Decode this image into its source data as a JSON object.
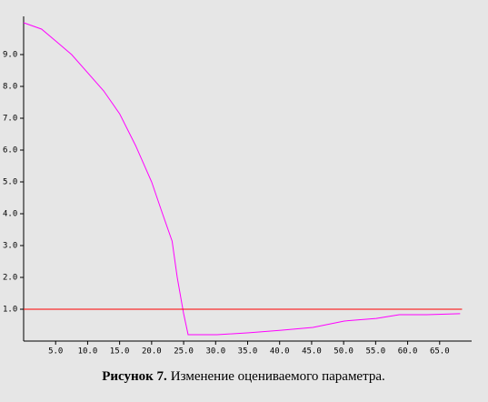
{
  "chart_data": {
    "type": "line",
    "xlim": [
      0,
      70
    ],
    "ylim": [
      0,
      10.2
    ],
    "xticks": [
      {
        "value": 5,
        "label": "5.0"
      },
      {
        "value": 10,
        "label": "10.0"
      },
      {
        "value": 15,
        "label": "15.0"
      },
      {
        "value": 20,
        "label": "20.0"
      },
      {
        "value": 25,
        "label": "25.0"
      },
      {
        "value": 30,
        "label": "30.0"
      },
      {
        "value": 35,
        "label": "35.0"
      },
      {
        "value": 40,
        "label": "40.0"
      },
      {
        "value": 45,
        "label": "45.0"
      },
      {
        "value": 50,
        "label": "50.0"
      },
      {
        "value": 55,
        "label": "55.0"
      },
      {
        "value": 60,
        "label": "60.0"
      },
      {
        "value": 65,
        "label": "65.0"
      }
    ],
    "yticks": [
      {
        "value": 1,
        "label": "1.0"
      },
      {
        "value": 2,
        "label": "2.0"
      },
      {
        "value": 3,
        "label": "3.0"
      },
      {
        "value": 4,
        "label": "4.0"
      },
      {
        "value": 5,
        "label": "5.0"
      },
      {
        "value": 6,
        "label": "6.0"
      },
      {
        "value": 7,
        "label": "7.0"
      },
      {
        "value": 8,
        "label": "8.0"
      },
      {
        "value": 9,
        "label": "9.0"
      }
    ],
    "series": [
      {
        "color": "#ff00ff",
        "x": [
          0,
          2.8,
          5,
          7.5,
          10,
          12.5,
          15,
          17.5,
          20,
          21.7,
          23.2,
          24,
          25,
          25.7,
          30.2,
          35.2,
          40.2,
          45.2,
          50.1,
          55.1,
          58.7,
          63,
          68.2
        ],
        "values": [
          10.0,
          9.8,
          9.43,
          9.0,
          8.43,
          7.86,
          7.14,
          6.14,
          5.0,
          4.0,
          3.14,
          2.0,
          0.86,
          0.2,
          0.2,
          0.26,
          0.34,
          0.43,
          0.63,
          0.71,
          0.83,
          0.83,
          0.86
        ]
      },
      {
        "color": "#ff0000",
        "x": [
          0,
          68.5
        ],
        "values": [
          1.0,
          1.0
        ]
      }
    ],
    "caption": {
      "label": "Рисунок 7.",
      "text": "Изменение оцениваемого параметра."
    }
  }
}
